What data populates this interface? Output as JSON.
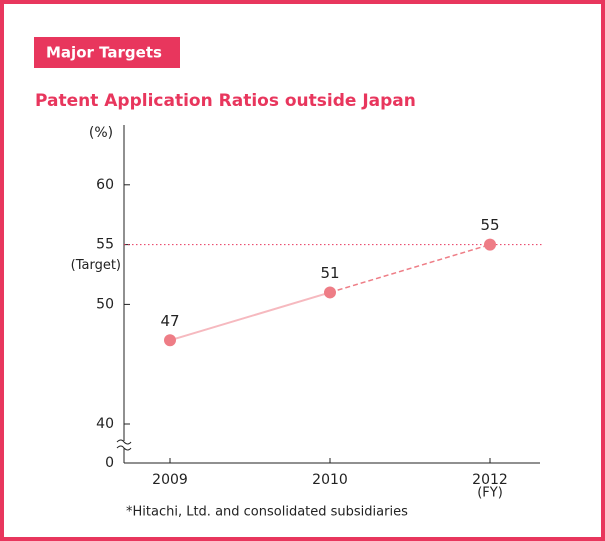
{
  "header": {
    "label": "Major Targets"
  },
  "chart_data": {
    "type": "line",
    "title": "Patent Application Ratios outside Japan",
    "y_label": "(%)",
    "x_label": "(FY)",
    "target_label": "(Target)",
    "target": 55,
    "footnote": "*Hitachi, Ltd. and consolidated subsidiaries",
    "categories": [
      "2009",
      "2010",
      "2012"
    ],
    "series": [
      {
        "name": "Patent application ratio",
        "color": "#ee7d86",
        "values": [
          47,
          51,
          55
        ]
      }
    ],
    "dashed_from_index": 1,
    "ylim": [
      0,
      65
    ],
    "y_break": [
      0,
      40
    ],
    "yticks": [
      0,
      40,
      50,
      55,
      60
    ],
    "grid": false
  }
}
